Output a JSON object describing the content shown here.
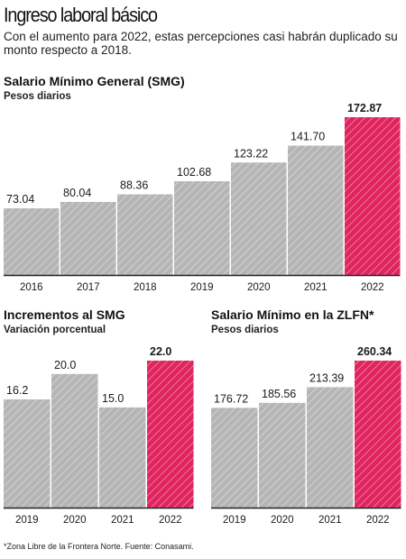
{
  "header": {
    "title": "Ingreso laboral básico",
    "subtitle": "Con el aumento para 2022, estas percepciones casi habrán duplicado su monto respecto a 2018."
  },
  "colors": {
    "gray_bar": "#b5b5b5",
    "highlight_bar": "#e0245e",
    "baseline": "#222222"
  },
  "chart_data": [
    {
      "type": "bar",
      "title": "Salario Mínimo General (SMG)",
      "subtitle": "Pesos diarios",
      "categories": [
        "2016",
        "2017",
        "2018",
        "2019",
        "2020",
        "2021",
        "2022"
      ],
      "values": [
        73.04,
        80.04,
        88.36,
        102.68,
        123.22,
        141.7,
        172.87
      ],
      "labels": [
        "73.04",
        "80.04",
        "88.36",
        "102.68",
        "123.22",
        "141.70",
        "172.87"
      ],
      "highlight": "2022",
      "ylim": [
        0,
        172.87
      ]
    },
    {
      "type": "bar",
      "title": "Incrementos al SMG",
      "subtitle": "Variación porcentual",
      "categories": [
        "2019",
        "2020",
        "2021",
        "2022"
      ],
      "values": [
        16.2,
        20.0,
        15.0,
        22.0
      ],
      "labels": [
        "16.2",
        "20.0",
        "15.0",
        "22.0"
      ],
      "highlight": "2022",
      "ylim": [
        0,
        22.0
      ]
    },
    {
      "type": "bar",
      "title": "Salario Mínimo en la ZLFN*",
      "subtitle": "Pesos diarios",
      "categories": [
        "2019",
        "2020",
        "2021",
        "2022"
      ],
      "values": [
        176.72,
        185.56,
        213.39,
        260.34
      ],
      "labels": [
        "176.72",
        "185.56",
        "213.39",
        "260.34"
      ],
      "highlight": "2022",
      "ylim": [
        0,
        260.34
      ]
    }
  ],
  "footnote": "*Zona Libre de la Frontera Norte. Fuente: Conasami."
}
